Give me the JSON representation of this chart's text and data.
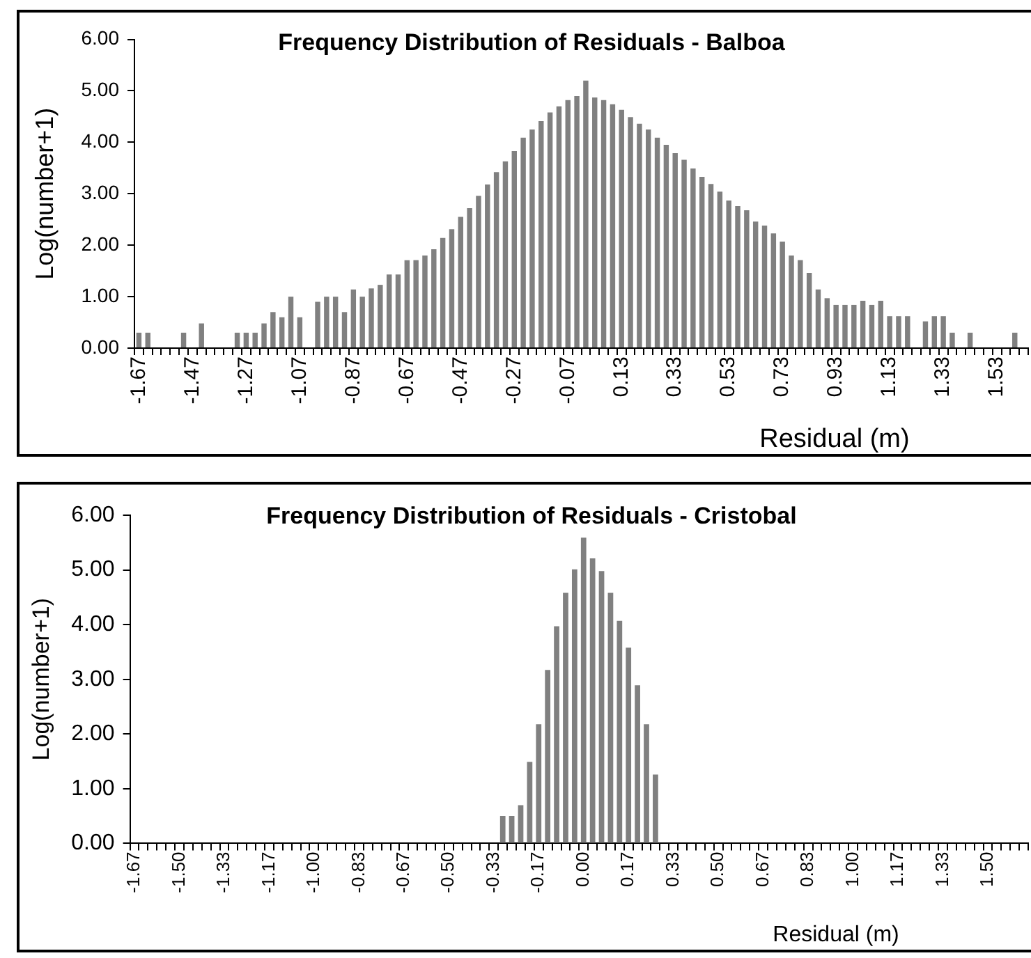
{
  "chart_data": [
    {
      "type": "bar",
      "title": "Frequency Distribution of Residuals - Balboa",
      "xlabel": "Residual (m)",
      "ylabel": "Log(number+1)",
      "categories": [
        "-1.67",
        null,
        null,
        null,
        null,
        null,
        "-1.47",
        null,
        null,
        null,
        null,
        null,
        "-1.27",
        null,
        null,
        null,
        null,
        null,
        "-1.07",
        null,
        null,
        null,
        null,
        null,
        "-0.87",
        null,
        null,
        null,
        null,
        null,
        "-0.67",
        null,
        null,
        null,
        null,
        null,
        "-0.47",
        null,
        null,
        null,
        null,
        null,
        "-0.27",
        null,
        null,
        null,
        null,
        null,
        "-0.07",
        null,
        null,
        null,
        null,
        null,
        "0.13",
        null,
        null,
        null,
        null,
        null,
        "0.33",
        null,
        null,
        null,
        null,
        null,
        "0.53",
        null,
        null,
        null,
        null,
        null,
        "0.73",
        null,
        null,
        null,
        null,
        null,
        "0.93",
        null,
        null,
        null,
        null,
        null,
        "1.13",
        null,
        null,
        null,
        null,
        null,
        "1.33",
        null,
        null,
        null,
        null,
        null,
        "1.53",
        null,
        null,
        null
      ],
      "values": [
        0.3,
        0.3,
        0,
        0,
        0,
        0.3,
        0,
        0.48,
        0,
        0,
        0,
        0.3,
        0.3,
        0.3,
        0.48,
        0.7,
        0.6,
        1.0,
        0.6,
        0,
        0.9,
        1.0,
        1.0,
        0.7,
        1.14,
        1.0,
        1.16,
        1.23,
        1.43,
        1.43,
        1.71,
        1.71,
        1.8,
        1.92,
        2.14,
        2.31,
        2.55,
        2.72,
        2.96,
        3.18,
        3.42,
        3.63,
        3.83,
        4.09,
        4.25,
        4.41,
        4.58,
        4.7,
        4.82,
        4.9,
        5.2,
        4.87,
        4.82,
        4.74,
        4.63,
        4.49,
        4.36,
        4.25,
        4.09,
        3.95,
        3.79,
        3.66,
        3.49,
        3.33,
        3.19,
        3.04,
        2.87,
        2.76,
        2.68,
        2.46,
        2.38,
        2.23,
        2.07,
        1.8,
        1.71,
        1.46,
        1.14,
        0.97,
        0.84,
        0.84,
        0.84,
        0.92,
        0.84,
        0.92,
        0.62,
        0.62,
        0.62,
        0,
        0.52,
        0.62,
        0.62,
        0.3,
        0,
        0.3,
        0,
        0,
        0,
        0,
        0.3,
        0
      ],
      "color": "#808080",
      "ylim": [
        0,
        6
      ],
      "yticks": [
        {
          "value": 0,
          "label": "0.00"
        },
        {
          "value": 1,
          "label": "1.00"
        },
        {
          "value": 2,
          "label": "2.00"
        },
        {
          "value": 3,
          "label": "3.00"
        },
        {
          "value": 4,
          "label": "4.00"
        },
        {
          "value": 5,
          "label": "5.00"
        },
        {
          "value": 6,
          "label": "6.00"
        }
      ],
      "grid": false,
      "legend": false
    },
    {
      "type": "bar",
      "title": "Frequency Distribution of Residuals - Cristobal",
      "xlabel": "Residual (m)",
      "ylabel": "Log(number+1)",
      "categories": [
        "-1.67",
        null,
        null,
        null,
        null,
        "-1.50",
        null,
        null,
        null,
        null,
        "-1.33",
        null,
        null,
        null,
        null,
        "-1.17",
        null,
        null,
        null,
        null,
        "-1.00",
        null,
        null,
        null,
        null,
        "-0.83",
        null,
        null,
        null,
        null,
        "-0.67",
        null,
        null,
        null,
        null,
        "-0.50",
        null,
        null,
        null,
        null,
        "-0.33",
        null,
        null,
        null,
        null,
        "-0.17",
        null,
        null,
        null,
        null,
        "0.00",
        null,
        null,
        null,
        null,
        "0.17",
        null,
        null,
        null,
        null,
        "0.33",
        null,
        null,
        null,
        null,
        "0.50",
        null,
        null,
        null,
        null,
        "0.67",
        null,
        null,
        null,
        null,
        "0.83",
        null,
        null,
        null,
        null,
        "1.00",
        null,
        null,
        null,
        null,
        "1.17",
        null,
        null,
        null,
        null,
        "1.33",
        null,
        null,
        null,
        null,
        "1.50",
        null,
        null,
        null,
        null
      ],
      "values": [
        0,
        0,
        0,
        0,
        0,
        0,
        0,
        0,
        0,
        0,
        0,
        0,
        0,
        0,
        0,
        0,
        0,
        0,
        0,
        0,
        0,
        0,
        0,
        0,
        0,
        0,
        0,
        0,
        0,
        0,
        0,
        0,
        0,
        0,
        0,
        0,
        0,
        0,
        0,
        0,
        0,
        0.5,
        0.5,
        0.7,
        1.49,
        2.18,
        3.17,
        3.97,
        4.58,
        5.01,
        5.59,
        5.21,
        4.98,
        4.58,
        4.07,
        3.58,
        2.89,
        2.18,
        1.26,
        0,
        0,
        0,
        0,
        0,
        0,
        0,
        0,
        0,
        0,
        0,
        0,
        0,
        0,
        0,
        0,
        0,
        0,
        0,
        0,
        0,
        0,
        0,
        0,
        0,
        0,
        0,
        0,
        0,
        0,
        0,
        0,
        0,
        0,
        0,
        0,
        0,
        0,
        0,
        0,
        0
      ],
      "color": "#808080",
      "ylim": [
        0,
        6
      ],
      "yticks": [
        {
          "value": 0,
          "label": "0.00"
        },
        {
          "value": 1,
          "label": "1.00"
        },
        {
          "value": 2,
          "label": "2.00"
        },
        {
          "value": 3,
          "label": "3.00"
        },
        {
          "value": 4,
          "label": "4.00"
        },
        {
          "value": 5,
          "label": "5.00"
        },
        {
          "value": 6,
          "label": "6.00"
        }
      ],
      "grid": false,
      "legend": false
    }
  ]
}
